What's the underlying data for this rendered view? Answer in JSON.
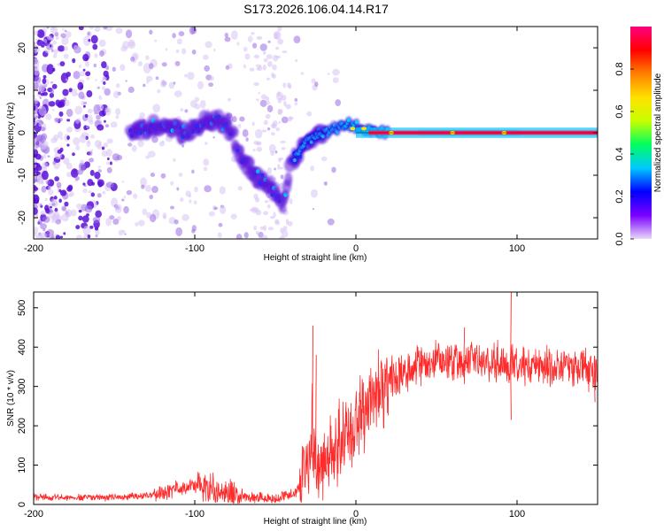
{
  "title": "S173.2026.106.04.14.R17",
  "colors": {
    "line": "#ff2a2a",
    "axis": "#000000",
    "blob_pale": "#d8c4f4",
    "blob_mid": "#9b6ce6",
    "blob_deep": "#5a10d8"
  },
  "chart_data": [
    {
      "type": "heatmap",
      "name": "spectrogram",
      "title": "S173.2026.106.04.14.R17",
      "xlabel": "Height of straight line (km)",
      "ylabel": "Frequency (Hz)",
      "xlim": [
        -200,
        150
      ],
      "ylim": [
        -25,
        25
      ],
      "xticks": [
        -200,
        -100,
        0,
        100
      ],
      "yticks": [
        -20,
        -10,
        0,
        10,
        20
      ],
      "colorbar": {
        "label": "Normalized spectral amplitude",
        "range": [
          0,
          1
        ],
        "ticks": [
          0.0,
          0.2,
          0.4,
          0.6,
          0.8
        ],
        "stops": [
          "#e8d8f8",
          "#7a00ff",
          "#0000ff",
          "#00c8ff",
          "#00ff60",
          "#c8ff00",
          "#ffe000",
          "#ff8000",
          "#ff0000",
          "#ff0080"
        ]
      },
      "ridge": [
        {
          "x": -140,
          "f": 0
        },
        {
          "x": -120,
          "f": 2
        },
        {
          "x": -105,
          "f": 0
        },
        {
          "x": -90,
          "f": 3
        },
        {
          "x": -80,
          "f": 2
        },
        {
          "x": -72,
          "f": -5
        },
        {
          "x": -62,
          "f": -10
        },
        {
          "x": -52,
          "f": -13
        },
        {
          "x": -45,
          "f": -17
        },
        {
          "x": -40,
          "f": -7
        },
        {
          "x": -30,
          "f": -2
        },
        {
          "x": -20,
          "f": 0
        },
        {
          "x": -5,
          "f": 2
        },
        {
          "x": 5,
          "f": 1
        },
        {
          "x": 20,
          "f": 0
        },
        {
          "x": 150,
          "f": 0
        }
      ]
    },
    {
      "type": "line",
      "name": "snr",
      "xlabel": "Height of straight line (km)",
      "ylabel": "SNR (10 * v/v)",
      "xlim": [
        -200,
        150
      ],
      "ylim": [
        0,
        540
      ],
      "xticks": [
        -200,
        -100,
        0,
        100
      ],
      "yticks": [
        0,
        100,
        200,
        300,
        400,
        500
      ],
      "envelope": [
        {
          "x": -200,
          "y": 18
        },
        {
          "x": -150,
          "y": 18
        },
        {
          "x": -130,
          "y": 22
        },
        {
          "x": -120,
          "y": 30
        },
        {
          "x": -100,
          "y": 50
        },
        {
          "x": -90,
          "y": 40
        },
        {
          "x": -80,
          "y": 30
        },
        {
          "x": -70,
          "y": 20
        },
        {
          "x": -50,
          "y": 15
        },
        {
          "x": -38,
          "y": 28
        },
        {
          "x": -30,
          "y": 80
        },
        {
          "x": -27,
          "y": 200
        },
        {
          "x": -25,
          "y": 90
        },
        {
          "x": -20,
          "y": 110
        },
        {
          "x": -10,
          "y": 160
        },
        {
          "x": 0,
          "y": 200
        },
        {
          "x": 10,
          "y": 260
        },
        {
          "x": 20,
          "y": 320
        },
        {
          "x": 40,
          "y": 355
        },
        {
          "x": 70,
          "y": 365
        },
        {
          "x": 100,
          "y": 355
        },
        {
          "x": 130,
          "y": 350
        },
        {
          "x": 150,
          "y": 340
        }
      ],
      "spikes": [
        {
          "x": -27,
          "y": 455
        },
        {
          "x": -25,
          "y": 380
        },
        {
          "x": 96,
          "y": 540
        },
        {
          "x": 96,
          "y": 215
        },
        {
          "x": 67,
          "y": 450
        },
        {
          "x": 148,
          "y": 260
        }
      ]
    }
  ]
}
